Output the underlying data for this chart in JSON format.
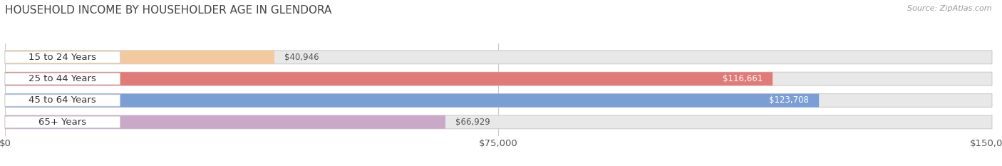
{
  "title": "HOUSEHOLD INCOME BY HOUSEHOLDER AGE IN GLENDORA",
  "source": "Source: ZipAtlas.com",
  "categories": [
    "15 to 24 Years",
    "25 to 44 Years",
    "45 to 64 Years",
    "65+ Years"
  ],
  "values": [
    40946,
    116661,
    123708,
    66929
  ],
  "bar_colors": [
    "#f5c9a0",
    "#e07b78",
    "#7b9fd4",
    "#c9a8c8"
  ],
  "xlim": [
    0,
    150000
  ],
  "xticks": [
    0,
    75000,
    150000
  ],
  "xtick_labels": [
    "$0",
    "$75,000",
    "$150,000"
  ],
  "background_color": "#ffffff",
  "bar_background_color": "#e8e8e8",
  "label_fontsize": 9.5,
  "value_fontsize": 8.5,
  "title_fontsize": 11,
  "source_fontsize": 8
}
